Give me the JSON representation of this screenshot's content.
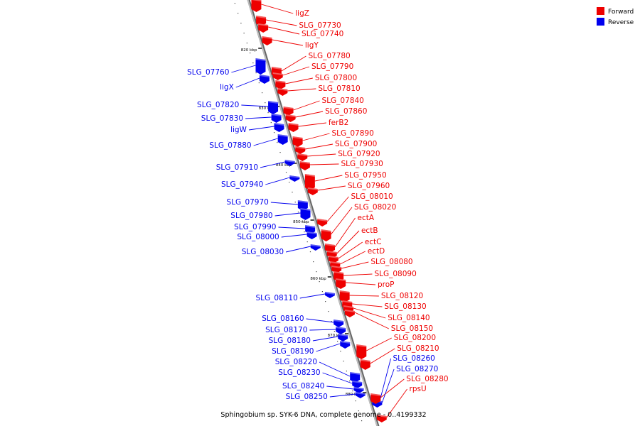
{
  "legend": {
    "forward": {
      "label": "Forward",
      "color": "#ee0000"
    },
    "reverse": {
      "label": "Reverse",
      "color": "#0000ee"
    }
  },
  "footer": "Sphingobium sp. SYK-6 DNA, complete genome - 0..4199332",
  "axis": {
    "ticks": [
      "820 kbp",
      "830 kbp",
      "840 kbp",
      "850 kbp",
      "860 kbp",
      "870 kbp",
      "880 kbp"
    ]
  },
  "forward_genes": [
    "ligZ",
    "SLG_07730",
    "SLG_07740",
    "ligY",
    "SLG_07780",
    "SLG_07790",
    "SLG_07800",
    "SLG_07810",
    "SLG_07840",
    "SLG_07860",
    "ferB2",
    "SLG_07890",
    "SLG_07900",
    "SLG_07920",
    "SLG_07930",
    "SLG_07950",
    "SLG_07960",
    "SLG_08010",
    "SLG_08020",
    "ectA",
    "ectB",
    "ectC",
    "ectD",
    "SLG_08080",
    "SLG_08090",
    "proP",
    "SLG_08120",
    "SLG_08130",
    "SLG_08140",
    "SLG_08150",
    "SLG_08200",
    "SLG_08210",
    "SLG_08280",
    "rpsU"
  ],
  "reverse_genes": [
    "SLG_07760",
    "ligX",
    "SLG_07820",
    "SLG_07830",
    "ligW",
    "SLG_07880",
    "SLG_07910",
    "SLG_07940",
    "SLG_07970",
    "SLG_07980",
    "SLG_07990",
    "SLG_08000",
    "SLG_08030",
    "SLG_08110",
    "SLG_08160",
    "SLG_08170",
    "SLG_08180",
    "SLG_08190",
    "SLG_08220",
    "SLG_08230",
    "SLG_08240",
    "SLG_08250",
    "SLG_08260",
    "SLG_08270"
  ]
}
